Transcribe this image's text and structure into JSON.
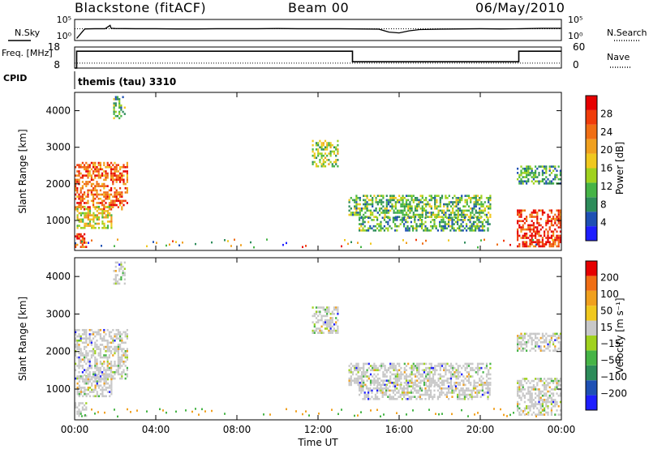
{
  "header": {
    "station": "Blackstone (fitACF)",
    "beam": "Beam 00",
    "date": "06/May/2010"
  },
  "chart_data": [
    {
      "type": "line",
      "panel": "noise",
      "left_label": "N.Sky",
      "right_label": "N.Search",
      "left_ticks": [
        "10^5",
        "10^0"
      ],
      "right_ticks": [
        "10^5",
        "10^0"
      ],
      "yscale": "log",
      "xlim": [
        0,
        24
      ],
      "ylim": [
        0,
        5
      ],
      "series": [
        {
          "name": "N.Sky",
          "style": "solid",
          "x": [
            0.1,
            0.5,
            1,
            1.5,
            1.75,
            1.8,
            2,
            3,
            4,
            5,
            6,
            7,
            8,
            9,
            10,
            11,
            12,
            13,
            14,
            15,
            15.5,
            16,
            16.5,
            17,
            18,
            19,
            20,
            21,
            22,
            23,
            24
          ],
          "y": [
            0.5,
            2.75,
            2.8,
            2.8,
            3.6,
            2.9,
            2.85,
            2.8,
            2.8,
            2.75,
            2.75,
            2.8,
            2.8,
            2.8,
            2.85,
            2.8,
            2.8,
            2.8,
            2.75,
            2.7,
            2.0,
            1.8,
            2.3,
            2.6,
            2.7,
            2.75,
            2.8,
            2.75,
            2.8,
            2.9,
            2.9
          ]
        },
        {
          "name": "N.Search",
          "style": "dotted",
          "x": [
            0,
            24
          ],
          "y": [
            2.8,
            2.8
          ]
        }
      ]
    },
    {
      "type": "line",
      "panel": "frequency",
      "left_label": "Freq. [MHz]",
      "right_label": "Nave",
      "left_ticks": [
        18,
        8
      ],
      "right_ticks": [
        60,
        0
      ],
      "ylim_left": [
        8,
        18
      ],
      "ylim_right": [
        0,
        60
      ],
      "xlim": [
        0,
        24
      ],
      "series": [
        {
          "name": "Freq. [MHz]",
          "style": "solid",
          "x": [
            0,
            0.1,
            0.1,
            13.7,
            13.7,
            21.9,
            21.9,
            24
          ],
          "y": [
            8,
            8,
            16,
            16,
            11,
            11,
            16,
            16
          ]
        },
        {
          "name": "Nave",
          "style": "dotted",
          "axis": "right",
          "x": [
            0,
            24
          ],
          "y": [
            14,
            14
          ]
        }
      ]
    },
    {
      "type": "table",
      "panel": "cpid",
      "label": "CPID",
      "program": "themis (tau)",
      "cpid": "3310"
    },
    {
      "type": "heatmap",
      "panel": "power",
      "ylabel": "Slant Range [km]",
      "xlim": [
        0,
        24
      ],
      "ylim": [
        180,
        4500
      ],
      "yticks": [
        1000,
        2000,
        3000,
        4000
      ],
      "colorbar": {
        "label": "Power [dB]",
        "ticks": [
          4,
          8,
          12,
          16,
          20,
          24,
          28
        ],
        "colors": [
          "#1e1eff",
          "#1e50b4",
          "#2d8c5a",
          "#46b446",
          "#a0d21e",
          "#f0c81e",
          "#f0a01e",
          "#f06e14",
          "#f03c0a",
          "#e60000"
        ]
      },
      "regions": [
        {
          "t0": 0.0,
          "t1": 2.6,
          "r0": 1300,
          "r1": 2600,
          "level": 0.8
        },
        {
          "t0": 0.1,
          "t1": 1.8,
          "r0": 800,
          "r1": 1400,
          "level": 0.55
        },
        {
          "t0": 0.0,
          "t1": 0.6,
          "r0": 300,
          "r1": 650,
          "level": 0.85
        },
        {
          "t0": 1.9,
          "t1": 2.5,
          "r0": 3800,
          "r1": 4400,
          "level": 0.35
        },
        {
          "t0": 11.7,
          "t1": 13.0,
          "r0": 2500,
          "r1": 3200,
          "level": 0.45
        },
        {
          "t0": 13.5,
          "t1": 20.5,
          "r0": 1100,
          "r1": 1700,
          "level": 0.35
        },
        {
          "t0": 14.0,
          "t1": 20.5,
          "r0": 750,
          "r1": 1100,
          "level": 0.3
        },
        {
          "t0": 21.8,
          "t1": 24.0,
          "r0": 300,
          "r1": 1300,
          "level": 0.9
        },
        {
          "t0": 21.8,
          "t1": 24.0,
          "r0": 2000,
          "r1": 2500,
          "level": 0.3
        }
      ]
    },
    {
      "type": "heatmap",
      "panel": "velocity",
      "ylabel": "Slant Range [km]",
      "xlabel": "Time UT",
      "xlim": [
        0,
        24
      ],
      "ylim": [
        180,
        4500
      ],
      "yticks": [
        1000,
        2000,
        3000,
        4000
      ],
      "xticks": [
        "00:00",
        "04:00",
        "08:00",
        "12:00",
        "16:00",
        "20:00",
        "00:00"
      ],
      "colorbar": {
        "label": "Velocity [m s⁻¹]",
        "ticks": [
          "200",
          "100",
          "50",
          "15",
          "−15",
          "−50",
          "−100",
          "−200"
        ],
        "colors": [
          "#1e1eff",
          "#1e50b4",
          "#2d8c5a",
          "#46b446",
          "#a0d21e",
          "#c8c8c8",
          "#f0c81e",
          "#f0a01e",
          "#f06e14",
          "#e60000"
        ]
      },
      "regions": [
        {
          "t0": 0.0,
          "t1": 2.6,
          "r0": 1300,
          "r1": 2600,
          "level": 0.5
        },
        {
          "t0": 0.1,
          "t1": 1.8,
          "r0": 800,
          "r1": 1400,
          "level": 0.5
        },
        {
          "t0": 0.0,
          "t1": 0.6,
          "r0": 300,
          "r1": 650,
          "level": 0.5
        },
        {
          "t0": 1.9,
          "t1": 2.5,
          "r0": 3800,
          "r1": 4400,
          "level": 0.5
        },
        {
          "t0": 11.7,
          "t1": 13.0,
          "r0": 2500,
          "r1": 3200,
          "level": 0.5
        },
        {
          "t0": 13.5,
          "t1": 20.5,
          "r0": 1100,
          "r1": 1700,
          "level": 0.5
        },
        {
          "t0": 14.0,
          "t1": 20.5,
          "r0": 750,
          "r1": 1100,
          "level": 0.5
        },
        {
          "t0": 21.8,
          "t1": 24.0,
          "r0": 300,
          "r1": 1300,
          "level": 0.5
        },
        {
          "t0": 21.8,
          "t1": 24.0,
          "r0": 2000,
          "r1": 2500,
          "level": 0.5
        }
      ]
    }
  ]
}
